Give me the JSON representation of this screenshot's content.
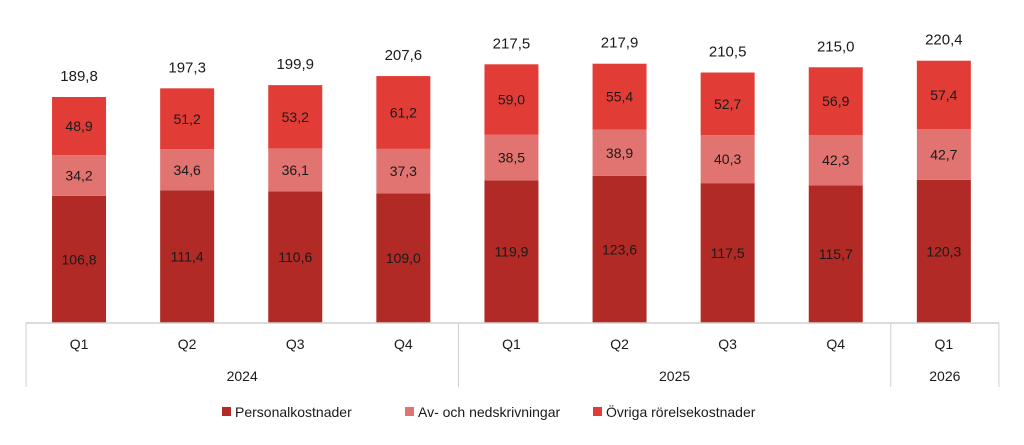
{
  "chart_data": {
    "type": "stacked-bar",
    "categories": [
      "Q1",
      "Q2",
      "Q3",
      "Q4",
      "Q1",
      "Q2",
      "Q3",
      "Q4",
      "Q1"
    ],
    "groups": [
      {
        "label": "2024",
        "count": 4
      },
      {
        "label": "2025",
        "count": 4
      },
      {
        "label": "2026",
        "count": 1
      }
    ],
    "series": [
      {
        "name": "Personalkostnader",
        "color": "#b12a25",
        "values": [
          106.8,
          111.4,
          110.6,
          109.0,
          119.9,
          123.6,
          117.5,
          115.7,
          120.3
        ],
        "labels": [
          "106,8",
          "111,4",
          "110,6",
          "109,0",
          "119,9",
          "123,6",
          "117,5",
          "115,7",
          "120,3"
        ]
      },
      {
        "name": "Av- och nedskrivningar",
        "color": "#e17370",
        "values": [
          34.2,
          34.6,
          36.1,
          37.3,
          38.5,
          38.9,
          40.3,
          42.3,
          42.7
        ],
        "labels": [
          "34,2",
          "34,6",
          "36,1",
          "37,3",
          "38,5",
          "38,9",
          "40,3",
          "42,3",
          "42,7"
        ]
      },
      {
        "name": "Övriga rörelsekostnader",
        "color": "#e23c36",
        "values": [
          48.9,
          51.2,
          53.2,
          61.2,
          59.0,
          55.4,
          52.7,
          56.9,
          57.4
        ],
        "labels": [
          "48,9",
          "51,2",
          "53,2",
          "61,2",
          "59,0",
          "55,4",
          "52,7",
          "56,9",
          "57,4"
        ]
      }
    ],
    "totals": [
      "189,8",
      "197,3",
      "199,9",
      "207,6",
      "217,5",
      "217,9",
      "210,5",
      "215,0",
      "220,4"
    ],
    "legend": "bottom",
    "grid": false
  }
}
